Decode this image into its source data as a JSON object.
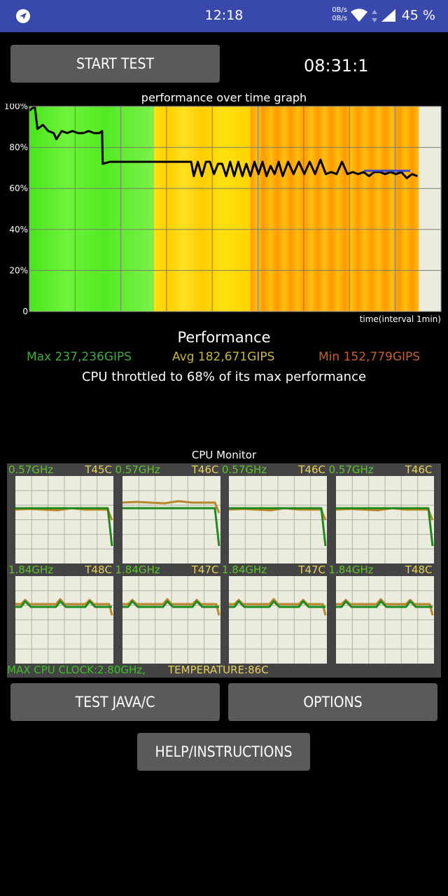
{
  "status_bar": {
    "time": "12:18",
    "net_up": "0B/s",
    "net_down": "0B/s",
    "battery": "45 %"
  },
  "controls": {
    "start_test": "START TEST",
    "timer": "08:31:1",
    "test_java_c": "TEST JAVA/C",
    "options": "OPTIONS",
    "help": "HELP/INSTRUCTIONS"
  },
  "chart_data": {
    "type": "line",
    "title": "performance over time graph",
    "xlabel": "time(interval 1min)",
    "ylabel": "",
    "y_ticks": [
      "100%",
      "80%",
      "60%",
      "40%",
      "20%",
      "0"
    ],
    "ylim": [
      0,
      100
    ],
    "grid": true,
    "series": [
      {
        "name": "performance",
        "x": [
          0,
          0.2,
          0.3,
          0.5,
          0.7,
          0.9,
          1.0,
          1.2,
          1.4,
          1.6,
          1.8,
          2.0,
          2.2,
          2.4,
          2.6,
          2.7,
          2.72,
          3.0,
          3.5,
          4.0,
          4.5,
          5.0,
          5.5,
          6.0,
          6.1,
          6.25,
          6.4,
          6.55,
          6.7,
          6.85,
          7.0,
          7.15,
          7.3,
          7.45,
          7.6,
          7.75,
          7.9,
          8.05,
          8.2,
          8.35,
          8.5,
          8.65,
          8.8,
          8.95,
          9.1,
          9.25,
          9.4,
          9.6,
          9.8,
          10.0,
          10.2,
          10.4,
          10.6,
          10.8,
          11.0,
          11.2,
          11.4,
          11.6,
          11.8,
          12.0,
          12.2,
          12.4,
          12.6,
          12.8,
          13.0,
          13.2,
          13.4,
          13.6,
          13.8,
          14.0,
          14.2,
          14.4
        ],
        "values": [
          98,
          100,
          89,
          91,
          88,
          87,
          84,
          88,
          87,
          88,
          87,
          87,
          88,
          87,
          87,
          88,
          72,
          73,
          73,
          73,
          73,
          73,
          73,
          73,
          66,
          73,
          66,
          73,
          73,
          67,
          72,
          72,
          66,
          73,
          66,
          73,
          66,
          72,
          66,
          73,
          67,
          73,
          66,
          71,
          67,
          73,
          66,
          73,
          67,
          73,
          67,
          73,
          67,
          74,
          67,
          68,
          67,
          73,
          67,
          68,
          67,
          68,
          66,
          68,
          68,
          67,
          68,
          67,
          68,
          65,
          67,
          66
        ]
      }
    ],
    "stats": {
      "title": "Performance",
      "max": "Max 237,236GIPS",
      "avg": "Avg 182,671GIPS",
      "min": "Min 152,779GIPS",
      "throttled": "CPU throttled to 68% of its max performance"
    },
    "colors": {
      "green": "#5ef02a",
      "yellow": "#ffd700",
      "orange": "#ff9900",
      "line": "#000000",
      "avg_line": "#3a48d8",
      "background": "#ececde"
    }
  },
  "cpu_monitor": {
    "title": "CPU Monitor",
    "cores": [
      {
        "freq": "0.57GHz",
        "temp": "T45C"
      },
      {
        "freq": "0.57GHz",
        "temp": "T46C"
      },
      {
        "freq": "0.57GHz",
        "temp": "T46C"
      },
      {
        "freq": "0.57GHz",
        "temp": "T46C"
      },
      {
        "freq": "1.84GHz",
        "temp": "T48C"
      },
      {
        "freq": "1.84GHz",
        "temp": "T47C"
      },
      {
        "freq": "1.84GHz",
        "temp": "T47C"
      },
      {
        "freq": "1.84GHz",
        "temp": "T48C"
      }
    ],
    "max_clock": "MAX CPU CLOCK:2.80GHz,",
    "temperature": "TEMPERATURE:86C",
    "colors": {
      "freq_line": "#1e8a1e",
      "temp_line": "#b8862b",
      "freq_text": "#5ec42e",
      "temp_text": "#e8d25c"
    }
  }
}
